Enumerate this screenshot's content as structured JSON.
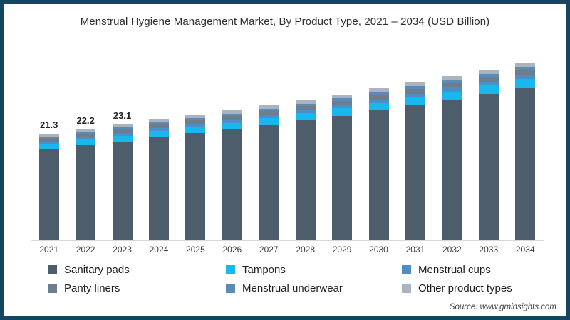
{
  "title": "Menstrual Hygiene Management Market, By Product Type, 2021 – 2034 (USD Billion)",
  "source": "Source: www.gminsights.com",
  "frame_border_color": "#15465f",
  "chart_data": {
    "type": "bar",
    "stacked": true,
    "title": "Menstrual Hygiene Management Market, By Product Type, 2021 – 2034 (USD Billion)",
    "xlabel": "",
    "ylabel": "USD Billion",
    "ylim": [
      0,
      39
    ],
    "grid": false,
    "legend_position": "bottom",
    "categories": [
      "2021",
      "2022",
      "2023",
      "2024",
      "2025",
      "2026",
      "2027",
      "2028",
      "2029",
      "2030",
      "2031",
      "2032",
      "2033",
      "2034"
    ],
    "totals": [
      21.3,
      22.2,
      23.1,
      24.1,
      25.0,
      25.9,
      26.9,
      28.0,
      29.1,
      30.3,
      31.5,
      32.8,
      34.1,
      35.5
    ],
    "bar_labels": [
      "21.3",
      "22.2",
      "23.1",
      "",
      "",
      "",
      "",
      "",
      "",
      "",
      "",
      "",
      "",
      ""
    ],
    "series": [
      {
        "name": "Sanitary pads",
        "color": "#4e5d6c",
        "values": [
          18.21,
          18.98,
          19.75,
          20.61,
          21.38,
          22.14,
          23.0,
          23.94,
          24.88,
          25.91,
          26.93,
          28.04,
          29.16,
          30.35
        ]
      },
      {
        "name": "Tampons",
        "color": "#18b7f0",
        "values": [
          1.07,
          1.11,
          1.16,
          1.21,
          1.25,
          1.3,
          1.35,
          1.4,
          1.46,
          1.52,
          1.58,
          1.64,
          1.71,
          1.78
        ]
      },
      {
        "name": "Menstrual cups",
        "color": "#4a8fc7",
        "values": [
          0.49,
          0.51,
          0.53,
          0.55,
          0.58,
          0.6,
          0.62,
          0.64,
          0.67,
          0.7,
          0.72,
          0.75,
          0.78,
          0.82
        ]
      },
      {
        "name": "Panty liners",
        "color": "#6e7d8c",
        "values": [
          0.64,
          0.67,
          0.69,
          0.72,
          0.75,
          0.78,
          0.81,
          0.84,
          0.87,
          0.91,
          0.95,
          0.98,
          1.02,
          1.07
        ]
      },
      {
        "name": "Menstrual underwear",
        "color": "#5d8ab4",
        "values": [
          0.36,
          0.38,
          0.39,
          0.41,
          0.43,
          0.44,
          0.46,
          0.48,
          0.49,
          0.52,
          0.54,
          0.56,
          0.58,
          0.6
        ]
      },
      {
        "name": "Other product types",
        "color": "#a9b4be",
        "values": [
          0.53,
          0.56,
          0.58,
          0.6,
          0.63,
          0.65,
          0.67,
          0.7,
          0.73,
          0.76,
          0.79,
          0.82,
          0.85,
          0.89
        ]
      }
    ]
  }
}
